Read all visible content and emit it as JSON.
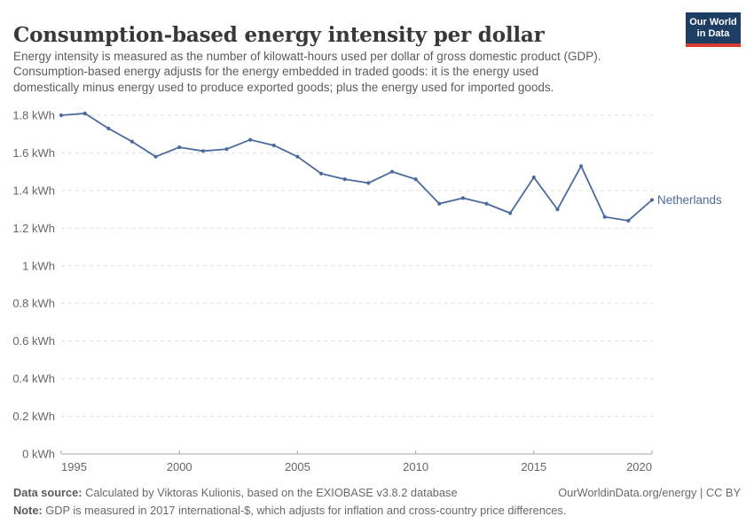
{
  "header": {
    "logo": {
      "line1": "Our World",
      "line2": "in Data",
      "bg_color": "#1d3d63",
      "bar_color": "#dc3b31"
    }
  },
  "chart_data": {
    "type": "line",
    "title": "Consumption-based energy intensity per dollar",
    "subtitle_lines": [
      "Energy intensity is measured as the number of kilowatt-hours used per dollar of gross domestic product (GDP).",
      "Consumption-based energy adjusts for the energy embedded in traded goods: it is the energy used",
      "domestically minus energy used to produce exported goods; plus the energy used for imported goods."
    ],
    "unit": "kWh",
    "x": [
      1995,
      1996,
      1997,
      1998,
      1999,
      2000,
      2001,
      2002,
      2003,
      2004,
      2005,
      2006,
      2007,
      2008,
      2009,
      2010,
      2011,
      2012,
      2013,
      2014,
      2015,
      2016,
      2017,
      2018,
      2019,
      2020
    ],
    "series": [
      {
        "name": "Netherlands",
        "color": "#4c6a9c",
        "values": [
          1.8,
          1.81,
          1.73,
          1.66,
          1.58,
          1.63,
          1.61,
          1.62,
          1.67,
          1.64,
          1.58,
          1.49,
          1.46,
          1.44,
          1.5,
          1.46,
          1.33,
          1.36,
          1.33,
          1.28,
          1.47,
          1.3,
          1.53,
          1.26,
          1.24,
          1.35
        ]
      }
    ],
    "xlim": [
      1995,
      2020
    ],
    "ylim": [
      0,
      1.8
    ],
    "yticks": [
      0,
      0.2,
      0.4,
      0.6,
      0.8,
      1.0,
      1.2,
      1.4,
      1.6,
      1.8
    ],
    "xticks": [
      1995,
      2000,
      2005,
      2010,
      2015,
      2020
    ],
    "grid": "dashed-horizontal",
    "legend_position": "end-of-line-label",
    "axis_label_color": "#676767",
    "grid_color": "#dddddd",
    "axis_line_color": "#a6a6a6"
  },
  "footer": {
    "source_label": "Data source:",
    "source_text": " Calculated by Viktoras Kulionis, based on the EXIOBASE v3.8.2 database",
    "rights": "OurWorldinData.org/energy | CC BY",
    "note_label": "Note:",
    "note_text": " GDP is measured in 2017 international-$, which adjusts for inflation and cross-country price differences."
  }
}
